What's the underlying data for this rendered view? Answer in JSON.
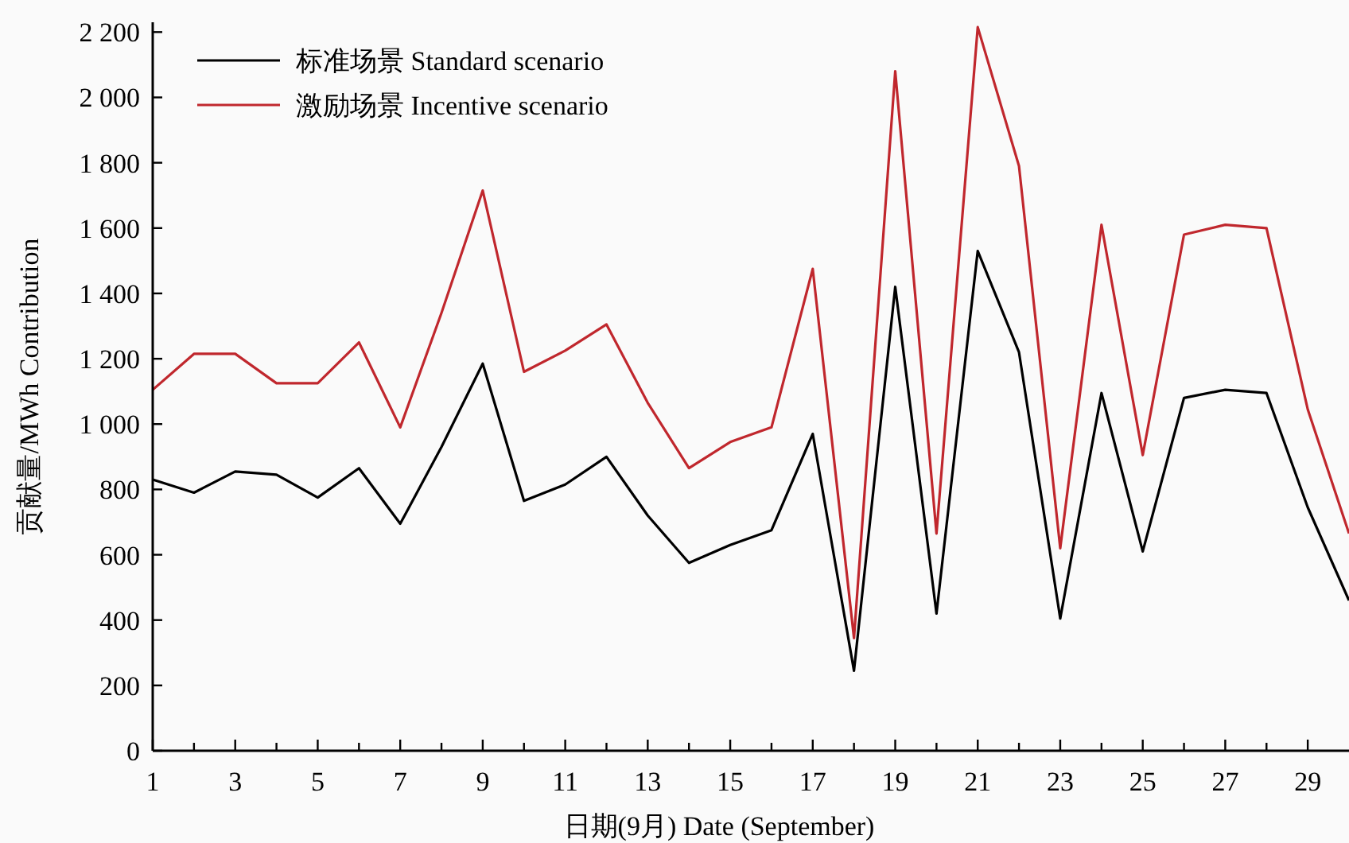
{
  "chart_data": {
    "type": "line",
    "xlabel": "日期(9月)  Date (September)",
    "ylabel": "贡献量/MWh  Contribution",
    "x": [
      1,
      2,
      3,
      4,
      5,
      6,
      7,
      8,
      9,
      10,
      11,
      12,
      13,
      14,
      15,
      16,
      17,
      18,
      19,
      20,
      21,
      22,
      23,
      24,
      25,
      26,
      27,
      28,
      29,
      30
    ],
    "series": [
      {
        "name": "标准场景 Standard scenario",
        "color": "#000000",
        "values": [
          830,
          790,
          855,
          845,
          775,
          865,
          695,
          930,
          1185,
          765,
          815,
          900,
          720,
          575,
          630,
          675,
          970,
          245,
          1420,
          420,
          1530,
          1220,
          405,
          1095,
          610,
          1080,
          1105,
          1095,
          745,
          460
        ]
      },
      {
        "name": "激励场景 Incentive scenario",
        "color": "#c0272d",
        "values": [
          1105,
          1215,
          1215,
          1125,
          1125,
          1250,
          990,
          1340,
          1715,
          1160,
          1225,
          1305,
          1065,
          865,
          945,
          990,
          1475,
          345,
          2080,
          665,
          2215,
          1790,
          620,
          1610,
          905,
          1580,
          1610,
          1600,
          1045,
          665
        ]
      }
    ],
    "xlim": [
      1,
      30
    ],
    "ylim": [
      0,
      2230
    ],
    "xticks": [
      1,
      {
        "value": 2,
        "label": null
      },
      3,
      {
        "value": 4,
        "label": null
      },
      5,
      {
        "value": 6,
        "label": null
      },
      7,
      {
        "value": 8,
        "label": null
      },
      9,
      {
        "value": 10,
        "label": null
      },
      11,
      {
        "value": 12,
        "label": null
      },
      13,
      {
        "value": 14,
        "label": null
      },
      15,
      {
        "value": 16,
        "label": null
      },
      17,
      {
        "value": 18,
        "label": null
      },
      19,
      {
        "value": 20,
        "label": null
      },
      21,
      {
        "value": 22,
        "label": null
      },
      23,
      {
        "value": 24,
        "label": null
      },
      25,
      {
        "value": 26,
        "label": null
      },
      27,
      {
        "value": 28,
        "label": null
      },
      29
    ],
    "yticks": [
      0,
      200,
      400,
      600,
      800,
      {
        "value": 1000,
        "label": "1 000"
      },
      {
        "value": 1200,
        "label": "1 200"
      },
      {
        "value": 1400,
        "label": "1 400"
      },
      {
        "value": 1600,
        "label": "1 600"
      },
      {
        "value": 1800,
        "label": "1 800"
      },
      {
        "value": 2000,
        "label": "2 000"
      },
      {
        "value": 2200,
        "label": "2 200"
      }
    ],
    "grid": false,
    "legend": "top left",
    "marker": "none",
    "line_style": "solid"
  }
}
